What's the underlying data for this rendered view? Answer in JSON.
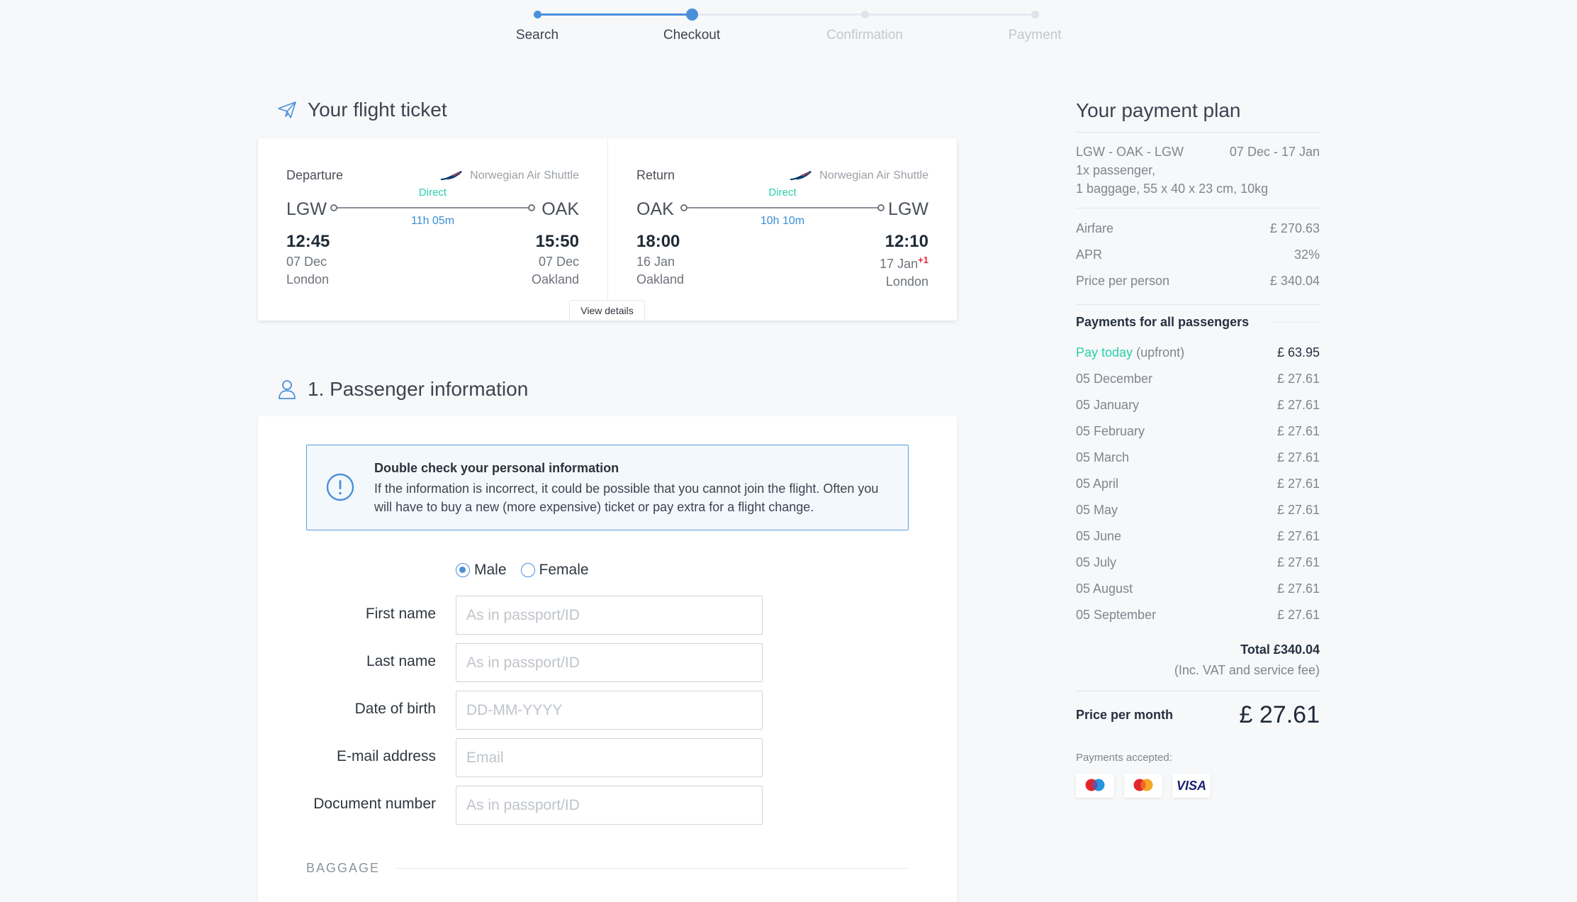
{
  "steps": [
    {
      "label": "Search",
      "state": "done"
    },
    {
      "label": "Checkout",
      "state": "active"
    },
    {
      "label": "Confirmation",
      "state": "todo"
    },
    {
      "label": "Payment",
      "state": "todo"
    }
  ],
  "ticket_section": {
    "title": "Your flight ticket",
    "icon": "plane-icon"
  },
  "flights": [
    {
      "type": "Departure",
      "airline": "Norwegian Air Shuttle",
      "from": "LGW",
      "to": "OAK",
      "stop": "Direct",
      "duration": "11h 05m",
      "dep_time": "12:45",
      "dep_date": "07 Dec",
      "dep_city": "London",
      "arr_time": "15:50",
      "arr_date": "07 Dec",
      "arr_city": "Oakland",
      "arr_plus": ""
    },
    {
      "type": "Return",
      "airline": "Norwegian Air Shuttle",
      "from": "OAK",
      "to": "LGW",
      "stop": "Direct",
      "duration": "10h 10m",
      "dep_time": "18:00",
      "dep_date": "16 Jan",
      "dep_city": "Oakland",
      "arr_time": "12:10",
      "arr_date": "17 Jan",
      "arr_city": "London",
      "arr_plus": "+1"
    }
  ],
  "view_details": "View details",
  "passenger_section": {
    "title": "1. Passenger information",
    "icon": "user-icon"
  },
  "notice": {
    "title": "Double check your personal information",
    "body": "If the information is incorrect, it could be possible that you cannot join the flight. Often you will have to buy a new (more expensive) ticket or pay extra for a flight change."
  },
  "gender": {
    "male": "Male",
    "female": "Female",
    "selected": "Male"
  },
  "fields": [
    {
      "label": "First name",
      "placeholder": "As in passport/ID",
      "value": ""
    },
    {
      "label": "Last name",
      "placeholder": "As in passport/ID",
      "value": ""
    },
    {
      "label": "Date of birth",
      "placeholder": "DD-MM-YYYY",
      "value": ""
    },
    {
      "label": "E-mail address",
      "placeholder": "Email",
      "value": ""
    },
    {
      "label": "Document number",
      "placeholder": "As in passport/ID",
      "value": ""
    }
  ],
  "baggage_label": "BAGGAGE",
  "plan": {
    "title": "Your payment plan",
    "route": "LGW - OAK - LGW",
    "dates": "07 Dec - 17 Jan",
    "passengers": "1x passenger,",
    "baggage": "1 baggage, 55 x 40 x 23 cm, 10kg",
    "costs": [
      {
        "label": "Airfare",
        "value": "£ 270.63"
      },
      {
        "label": "APR",
        "value": "32%"
      },
      {
        "label": "Price per person",
        "value": "£ 340.04"
      }
    ],
    "payments_heading": "Payments for all passengers",
    "pay_today": {
      "label": "Pay today",
      "suffix": "(upfront)",
      "value": "£ 63.95"
    },
    "installments": [
      {
        "label": "05 December",
        "value": "£ 27.61"
      },
      {
        "label": "05 January",
        "value": "£ 27.61"
      },
      {
        "label": "05 February",
        "value": "£ 27.61"
      },
      {
        "label": "05 March",
        "value": "£ 27.61"
      },
      {
        "label": "05 April",
        "value": "£ 27.61"
      },
      {
        "label": "05 May",
        "value": "£ 27.61"
      },
      {
        "label": "05 June",
        "value": "£ 27.61"
      },
      {
        "label": "05 July",
        "value": "£ 27.61"
      },
      {
        "label": "05 August",
        "value": "£ 27.61"
      },
      {
        "label": "05 September",
        "value": "£ 27.61"
      }
    ],
    "total": "Total £340.04",
    "vat_note": "(Inc. VAT and service fee)",
    "price_per_month_label": "Price per month",
    "price_per_month": "£ 27.61",
    "accepted_label": "Payments accepted:",
    "cards": [
      "maestro-logo",
      "mastercard-logo",
      "visa-logo"
    ],
    "visa_text": "VISA"
  },
  "colors": {
    "accent": "#4a90d9",
    "green": "#2bd0a8",
    "red": "#e0253b"
  }
}
